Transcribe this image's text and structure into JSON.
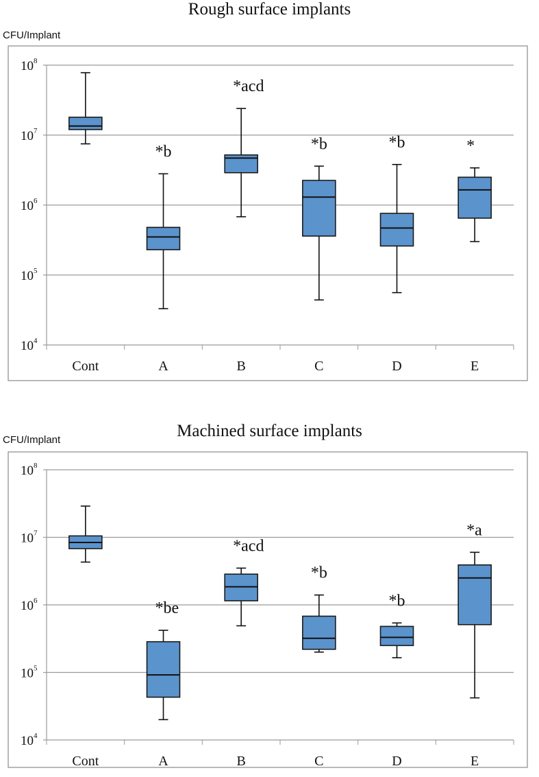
{
  "chart_data": [
    {
      "type": "box",
      "title": "Rough surface implants",
      "ylabel": "CFU/Implant",
      "y_scale": "log",
      "ylim": [
        10000,
        100000000
      ],
      "y_ticks": [
        {
          "value": 10000,
          "base": "10",
          "exp": "4"
        },
        {
          "value": 100000,
          "base": "10",
          "exp": "5"
        },
        {
          "value": 1000000,
          "base": "10",
          "exp": "6"
        },
        {
          "value": 10000000,
          "base": "10",
          "exp": "7"
        },
        {
          "value": 100000000,
          "base": "10",
          "exp": "8"
        }
      ],
      "grid": true,
      "categories": [
        "Cont",
        "A",
        "B",
        "C",
        "D",
        "E"
      ],
      "boxes": [
        {
          "min": 7500000,
          "q1": 12000000,
          "median": 13500000,
          "q3": 18000000,
          "max": 78000000
        },
        {
          "min": 33000,
          "q1": 230000,
          "median": 350000,
          "q3": 480000,
          "max": 2800000
        },
        {
          "min": 680000,
          "q1": 2900000,
          "median": 4700000,
          "q3": 5200000,
          "max": 24000000
        },
        {
          "min": 44000,
          "q1": 360000,
          "median": 1300000,
          "q3": 2250000,
          "max": 3600000
        },
        {
          "min": 56000,
          "q1": 260000,
          "median": 470000,
          "q3": 760000,
          "max": 3800000
        },
        {
          "min": 300000,
          "q1": 650000,
          "median": 1650000,
          "q3": 2500000,
          "max": 3400000
        }
      ],
      "annotations": [
        "",
        "*b",
        "*acd",
        "*b",
        "*b",
        "*"
      ]
    },
    {
      "type": "box",
      "title": "Machined surface implants",
      "ylabel": "CFU/Implant",
      "y_scale": "log",
      "ylim": [
        10000,
        100000000
      ],
      "y_ticks": [
        {
          "value": 10000,
          "base": "10",
          "exp": "4"
        },
        {
          "value": 100000,
          "base": "10",
          "exp": "5"
        },
        {
          "value": 1000000,
          "base": "10",
          "exp": "6"
        },
        {
          "value": 10000000,
          "base": "10",
          "exp": "7"
        },
        {
          "value": 100000000,
          "base": "10",
          "exp": "8"
        }
      ],
      "grid": true,
      "categories": [
        "Cont",
        "A",
        "B",
        "C",
        "D",
        "E"
      ],
      "boxes": [
        {
          "min": 4300000,
          "q1": 6800000,
          "median": 8400000,
          "q3": 10500000,
          "max": 29000000
        },
        {
          "min": 20000,
          "q1": 43000,
          "median": 92000,
          "q3": 285000,
          "max": 420000
        },
        {
          "min": 490000,
          "q1": 1150000,
          "median": 1850000,
          "q3": 2850000,
          "max": 3500000
        },
        {
          "min": 200000,
          "q1": 220000,
          "median": 320000,
          "q3": 680000,
          "max": 1400000
        },
        {
          "min": 165000,
          "q1": 250000,
          "median": 330000,
          "q3": 480000,
          "max": 540000
        },
        {
          "min": 42000,
          "q1": 510000,
          "median": 2500000,
          "q3": 3900000,
          "max": 6000000
        }
      ],
      "annotations": [
        "",
        "*be",
        "*acd",
        "*b",
        "*b",
        "*a"
      ]
    }
  ]
}
